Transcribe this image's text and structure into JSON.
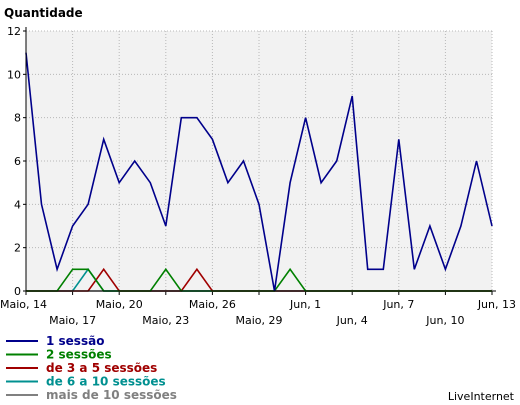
{
  "chart_data": {
    "type": "line",
    "ylabel": "Quantidade",
    "ylim": [
      0,
      12
    ],
    "yticks": [
      "0",
      "2",
      "4",
      "6",
      "8",
      "10",
      "12"
    ],
    "grid": true,
    "legend_placement": "bottom-left",
    "x": [
      "Maio, 14",
      "Maio, 15",
      "Maio, 16",
      "Maio, 17",
      "Maio, 18",
      "Maio, 19",
      "Maio, 20",
      "Maio, 21",
      "Maio, 22",
      "Maio, 23",
      "Maio, 24",
      "Maio, 25",
      "Maio, 26",
      "Maio, 27",
      "Maio, 28",
      "Maio, 29",
      "Maio, 30",
      "Maio, 31",
      "Jun, 1",
      "Jun, 2",
      "Jun, 3",
      "Jun, 4",
      "Jun, 5",
      "Jun, 6",
      "Jun, 7",
      "Jun, 8",
      "Jun, 9",
      "Jun, 10",
      "Jun, 11",
      "Jun, 12",
      "Jun, 13"
    ],
    "xticks_top": [
      "Maio, 14",
      "Maio, 20",
      "Maio, 26",
      "Jun, 1",
      "Jun, 7",
      "Jun, 13"
    ],
    "xticks_bottom": [
      "Maio, 17",
      "Maio, 23",
      "Maio, 29",
      "Jun, 4",
      "Jun, 10"
    ],
    "series": [
      {
        "name": "1 sessão",
        "color": "#00008b",
        "values": [
          11,
          4,
          1,
          3,
          4,
          7,
          5,
          6,
          5,
          3,
          8,
          8,
          7,
          5,
          6,
          4,
          0,
          5,
          8,
          5,
          6,
          9,
          1,
          1,
          7,
          1,
          3,
          1,
          3,
          6,
          3
        ]
      },
      {
        "name": "2 sessões",
        "color": "#008000",
        "values": [
          0,
          0,
          0,
          1,
          1,
          0,
          0,
          0,
          0,
          1,
          0,
          0,
          0,
          0,
          0,
          0,
          0,
          1,
          0,
          0,
          0,
          0,
          0,
          0,
          0,
          0,
          0,
          0,
          0,
          0,
          0
        ]
      },
      {
        "name": "de 3 a 5 sessões",
        "color": "#a00000",
        "values": [
          0,
          0,
          0,
          0,
          0,
          1,
          0,
          0,
          0,
          0,
          0,
          1,
          0,
          0,
          0,
          0,
          0,
          0,
          0,
          0,
          0,
          0,
          0,
          0,
          0,
          0,
          0,
          0,
          0,
          0,
          0
        ]
      },
      {
        "name": "de 6 a 10 sessões",
        "color": "#009090",
        "values": [
          0,
          0,
          0,
          0,
          1,
          0,
          0,
          0,
          0,
          0,
          0,
          0,
          0,
          0,
          0,
          0,
          0,
          0,
          0,
          0,
          0,
          0,
          0,
          0,
          0,
          0,
          0,
          0,
          0,
          0,
          0
        ]
      },
      {
        "name": "mais de 10 sessões",
        "color": "#808080",
        "values": [
          0,
          0,
          0,
          0,
          0,
          0,
          0,
          0,
          0,
          0,
          0,
          0,
          0,
          0,
          0,
          0,
          0,
          0,
          0,
          0,
          0,
          0,
          0,
          0,
          0,
          0,
          0,
          0,
          0,
          0,
          0
        ]
      }
    ]
  },
  "credit": "LiveInternet"
}
